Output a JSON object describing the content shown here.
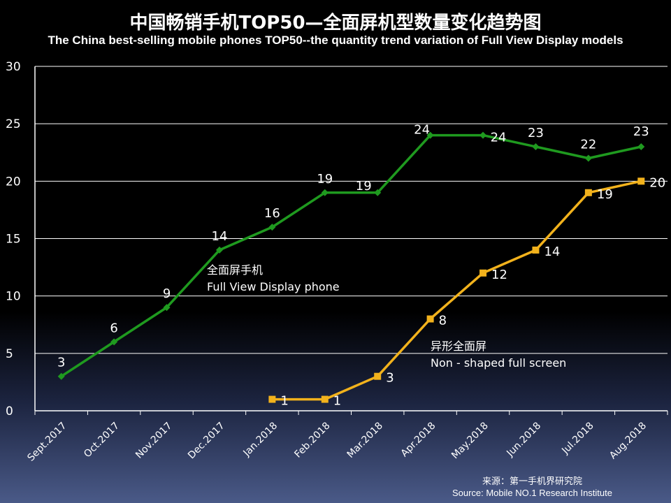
{
  "header": {
    "title": "中国畅销手机TOP50—全面屏机型数量变化趋势图",
    "subtitle": "The China best-selling mobile phones TOP50--the quantity trend variation of Full View Display models"
  },
  "source": {
    "line1": "来源：第一手机界研究院",
    "line2": "Source: Mobile NO.1 Research Institute"
  },
  "colors": {
    "full_view": "#1f9a1f",
    "non_shaped": "#f2b21c",
    "background": "#000000"
  },
  "chart_data": {
    "type": "line",
    "categories": [
      "Sept.2017",
      "Oct.2017",
      "Nov.2017",
      "Dec.2017",
      "Jan.2018",
      "Feb.2018",
      "Mar.2018",
      "Apr.2018",
      "May.2018",
      "Jun.2018",
      "Jul.2018",
      "Aug.2018"
    ],
    "ylim": [
      0,
      30
    ],
    "yticks": [
      0,
      5,
      10,
      15,
      20,
      25,
      30
    ],
    "grid": true,
    "series": [
      {
        "name": "全面屏手机",
        "name_en": "Full View Display phone",
        "marker": "diamond",
        "values": [
          3,
          6,
          9,
          14,
          16,
          19,
          19,
          24,
          24,
          23,
          22,
          23
        ]
      },
      {
        "name": "异形全面屏",
        "name_en": "Non - shaped full screen",
        "marker": "square",
        "values": [
          null,
          null,
          null,
          null,
          1,
          1,
          3,
          8,
          12,
          14,
          19,
          20
        ]
      }
    ]
  }
}
